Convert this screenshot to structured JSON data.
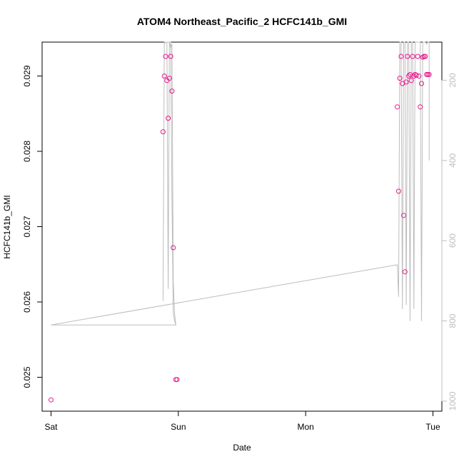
{
  "chart_data": {
    "type": "scatter",
    "title": "ATOM4 Northeast_Pacific_2 HCFC141b_GMI",
    "xlabel": "Date",
    "ylabel": "HCFC141b_GMI",
    "x_ticks": [
      "Sat",
      "Sun",
      "Mon",
      "Tue"
    ],
    "xlim": [
      -0.07,
      3.07
    ],
    "ylim": [
      0.02455,
      0.02945
    ],
    "y_ticks": [
      "0.025",
      "0.026",
      "0.027",
      "0.028",
      "0.029"
    ],
    "y_tick_values": [
      0.025,
      0.026,
      0.027,
      0.028,
      0.029
    ],
    "y2_ticks": [
      "200",
      "400",
      "600",
      "800",
      "1000"
    ],
    "y2_tick_values": [
      200,
      400,
      600,
      800,
      1000
    ],
    "y2lim": [
      1025,
      105
    ],
    "grid": false,
    "colors": {
      "points": "#e6198c",
      "line": "#bdbdbd"
    },
    "series": [
      {
        "kind": "points",
        "x": [
          0.0,
          0.88,
          0.89,
          0.9,
          0.91,
          0.92,
          0.93,
          0.94,
          0.95,
          0.96,
          0.98,
          0.99,
          2.72,
          2.73,
          2.74,
          2.75,
          2.76,
          2.77,
          2.78,
          2.79,
          2.8,
          2.81,
          2.82,
          2.83,
          2.84,
          2.85,
          2.86,
          2.87,
          2.88,
          2.89,
          2.9,
          2.91,
          2.92,
          2.93,
          2.94,
          2.95,
          2.96,
          2.97
        ],
        "y": [
          0.0247,
          0.02826,
          0.029,
          0.02926,
          0.02894,
          0.02844,
          0.02897,
          0.02926,
          0.0288,
          0.02672,
          0.02497,
          0.02497,
          0.02859,
          0.02747,
          0.02897,
          0.02926,
          0.0289,
          0.02715,
          0.0264,
          0.02892,
          0.02926,
          0.029,
          0.02902,
          0.02894,
          0.02926,
          0.029,
          0.02902,
          0.02901,
          0.02926,
          0.029,
          0.02859,
          0.0289,
          0.02925,
          0.02926,
          0.02926,
          0.02902,
          0.02902,
          0.02902
        ]
      },
      {
        "kind": "line",
        "y_axis": "right",
        "x": [
          0.0,
          0.98,
          0.97,
          0.96,
          0.95,
          0.94,
          0.93,
          0.92,
          0.91,
          0.9,
          0.89,
          0.88,
          0.88,
          0.89,
          0.9,
          0.91,
          0.92,
          0.93,
          0.94,
          0.95,
          0.96,
          0.97,
          0.98,
          0.0,
          2.72,
          2.73,
          2.74,
          2.75,
          2.76,
          2.77,
          2.78,
          2.79,
          2.8,
          2.81,
          2.82,
          2.83,
          2.84,
          2.85,
          2.86,
          2.87,
          2.88,
          2.89,
          2.9,
          2.91,
          2.92,
          2.93,
          2.94,
          2.95,
          2.96,
          2.97,
          2.97
        ],
        "y": [
          810,
          810,
          800,
          780,
          500,
          105,
          105,
          720,
          105,
          105,
          110,
          750,
          750,
          105,
          105,
          105,
          105,
          105,
          120,
          110,
          700,
          780,
          810,
          810,
          660,
          740,
          105,
          105,
          770,
          105,
          105,
          760,
          105,
          105,
          800,
          105,
          105,
          770,
          105,
          105,
          105,
          105,
          105,
          800,
          105,
          105,
          105,
          110,
          105,
          105,
          400
        ]
      }
    ]
  }
}
